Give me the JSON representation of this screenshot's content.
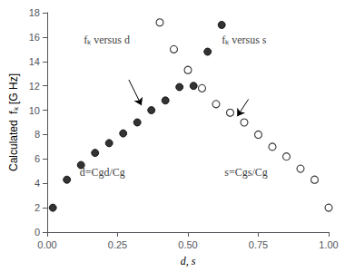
{
  "chart_data": {
    "type": "scatter",
    "xlabel": "d, s",
    "ylabel": "Calculated  fₖ [G Hz]",
    "series": [
      {
        "x": [
          0.02,
          0.07,
          0.12,
          0.17,
          0.22,
          0.27,
          0.32,
          0.37,
          0.42,
          0.47,
          0.52,
          0.57,
          0.62
        ],
        "values": [
          2.0,
          4.3,
          5.5,
          6.5,
          7.3,
          8.1,
          9.0,
          10.0,
          10.8,
          11.9,
          12.0,
          14.8,
          17.0
        ],
        "marker": "circle",
        "color": "#000000"
      },
      {
        "x": [
          0.4,
          0.45,
          0.5,
          0.55,
          0.6,
          0.65,
          0.7,
          0.75,
          0.8,
          0.85,
          0.9,
          0.95,
          1.0
        ],
        "values": [
          17.2,
          15.0,
          13.3,
          11.8,
          10.5,
          9.8,
          9.0,
          8.0,
          7.0,
          6.2,
          5.2,
          4.3,
          2.0
        ],
        "marker": "circle_open",
        "color": "#000000"
      }
    ],
    "xlim": [
      0.0,
      1.0
    ],
    "ylim": [
      0,
      18
    ],
    "xticks": [
      {
        "value": 0.0,
        "label": "0.00"
      },
      {
        "value": 0.25,
        "label": "0.25"
      },
      {
        "value": 0.5,
        "label": "0.50"
      },
      {
        "value": 0.75,
        "label": "0.75"
      },
      {
        "value": 1.0,
        "label": "1.00"
      }
    ],
    "yticks": [
      0,
      2,
      4,
      6,
      8,
      10,
      12,
      14,
      16,
      18
    ],
    "grid": false,
    "annotations": [
      {
        "text": "fₖ versus d",
        "x": 0.13,
        "y": 15.3
      },
      {
        "text": "fₖ versus s",
        "x": 0.62,
        "y": 15.3
      },
      {
        "text": "d=Cgd/Cg",
        "x": 0.115,
        "y": 4.5
      },
      {
        "text": "s=Cgs/Cg",
        "x": 0.63,
        "y": 4.5
      }
    ],
    "arrows": [
      {
        "x": [
          0.29,
          0.335
        ],
        "y": [
          12.5,
          10.4
        ]
      },
      {
        "x": [
          0.715,
          0.675
        ],
        "y": [
          10.9,
          9.5
        ]
      }
    ]
  }
}
